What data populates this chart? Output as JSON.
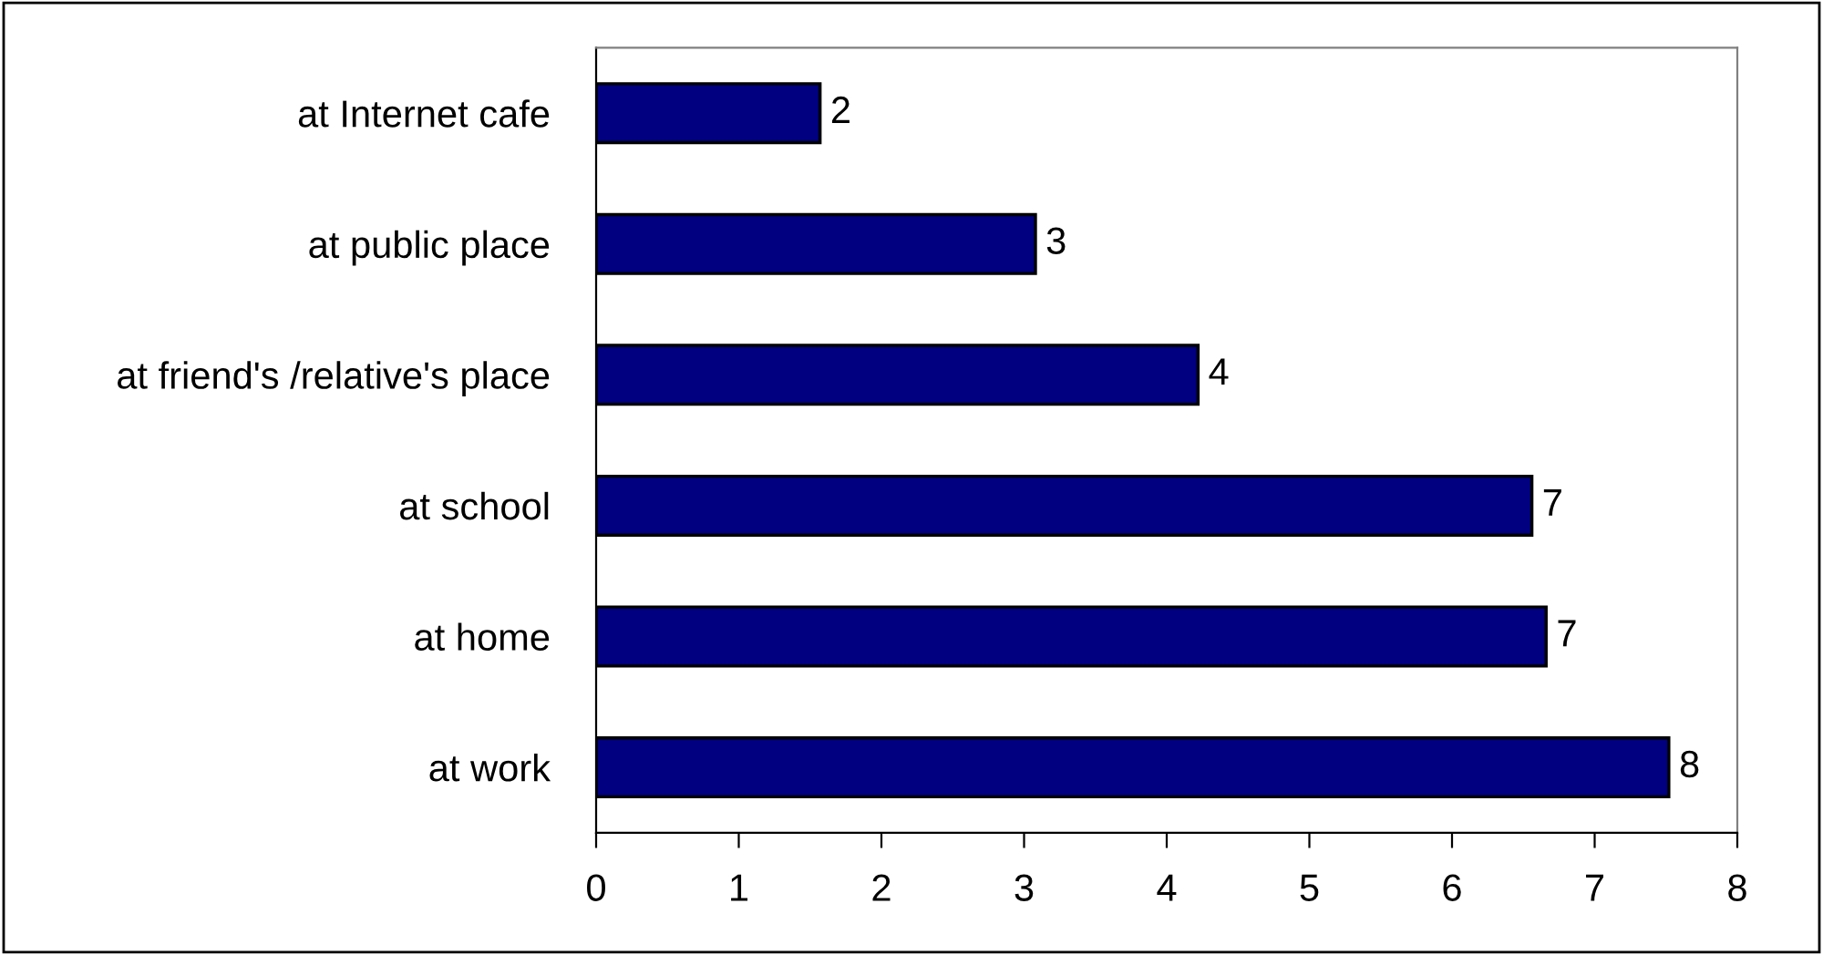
{
  "chart_data": {
    "type": "bar",
    "orientation": "horizontal",
    "categories": [
      "at Internet cafe",
      "at public place",
      "at friend's /relative's place",
      "at school",
      "at home",
      "at work"
    ],
    "values": [
      1.57,
      3.08,
      4.22,
      6.56,
      6.66,
      7.52
    ],
    "value_labels": [
      "2",
      "3",
      "4",
      "7",
      "7",
      "8"
    ],
    "color": "#000080",
    "xlim": [
      0,
      8
    ],
    "xticks": [
      0,
      1,
      2,
      3,
      4,
      5,
      6,
      7,
      8
    ],
    "grid": false,
    "legend": false
  }
}
